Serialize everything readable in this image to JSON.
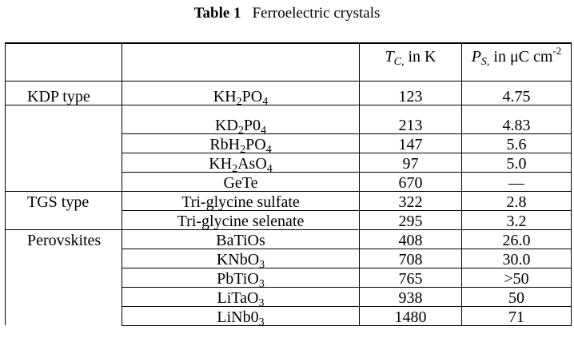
{
  "caption": {
    "number": "Table 1",
    "title": "Ferroelectric crystals"
  },
  "headers": {
    "group": "",
    "compound": "",
    "tc_symbol": "T",
    "tc_sub": "C,",
    "tc_unit": " in K",
    "ps_symbol": "P",
    "ps_sub": "S,",
    "ps_unit": " in μC cm",
    "ps_sup": "-2"
  },
  "rows": [
    {
      "group": "KDP type",
      "compound_parts": [
        [
          "KH",
          ""
        ],
        [
          "2",
          "sub"
        ],
        [
          "PO",
          ""
        ],
        [
          "4",
          "sub"
        ]
      ],
      "tc": "123",
      "ps": "4.75"
    },
    {
      "group": "",
      "compound_parts": [
        [
          "KD",
          ""
        ],
        [
          "2",
          "sub"
        ],
        [
          "P0",
          ""
        ],
        [
          "4",
          "sub"
        ]
      ],
      "tc": "213",
      "ps": "4.83"
    },
    {
      "group": "",
      "compound_parts": [
        [
          "RbH",
          ""
        ],
        [
          "2",
          "sub"
        ],
        [
          "PO",
          ""
        ],
        [
          "4",
          "sub"
        ]
      ],
      "tc": "147",
      "ps": "5.6"
    },
    {
      "group": "",
      "compound_parts": [
        [
          "KH",
          ""
        ],
        [
          "2",
          "sub"
        ],
        [
          "AsO",
          ""
        ],
        [
          "4",
          "sub"
        ]
      ],
      "tc": "97",
      "ps": "5.0"
    },
    {
      "group": "",
      "compound_parts": [
        [
          "GeTe",
          ""
        ]
      ],
      "tc": "670",
      "ps": "—"
    },
    {
      "group": "TGS type",
      "compound_parts": [
        [
          "Tri-glycine sulfate",
          ""
        ]
      ],
      "tc": "322",
      "ps": "2.8"
    },
    {
      "group": "",
      "compound_parts": [
        [
          "Tri-glycine selenate",
          ""
        ]
      ],
      "tc": "295",
      "ps": "3.2"
    },
    {
      "group": "Perovskites",
      "compound_parts": [
        [
          "BaTiOs",
          ""
        ]
      ],
      "tc": "408",
      "ps": "26.0"
    },
    {
      "group": "",
      "compound_parts": [
        [
          "KNbO",
          ""
        ],
        [
          "3",
          "sub"
        ]
      ],
      "tc": "708",
      "ps": "30.0"
    },
    {
      "group": "",
      "compound_parts": [
        [
          "PbTiO",
          ""
        ],
        [
          "3",
          "sub"
        ]
      ],
      "tc": "765",
      "ps": ">50"
    },
    {
      "group": "",
      "compound_parts": [
        [
          "LiTaO",
          ""
        ],
        [
          "3",
          "sub"
        ]
      ],
      "tc": "938",
      "ps": "50"
    },
    {
      "group": "",
      "compound_parts": [
        [
          "LiNb0",
          ""
        ],
        [
          "3",
          "sub"
        ]
      ],
      "tc": "1480",
      "ps": "71"
    }
  ]
}
